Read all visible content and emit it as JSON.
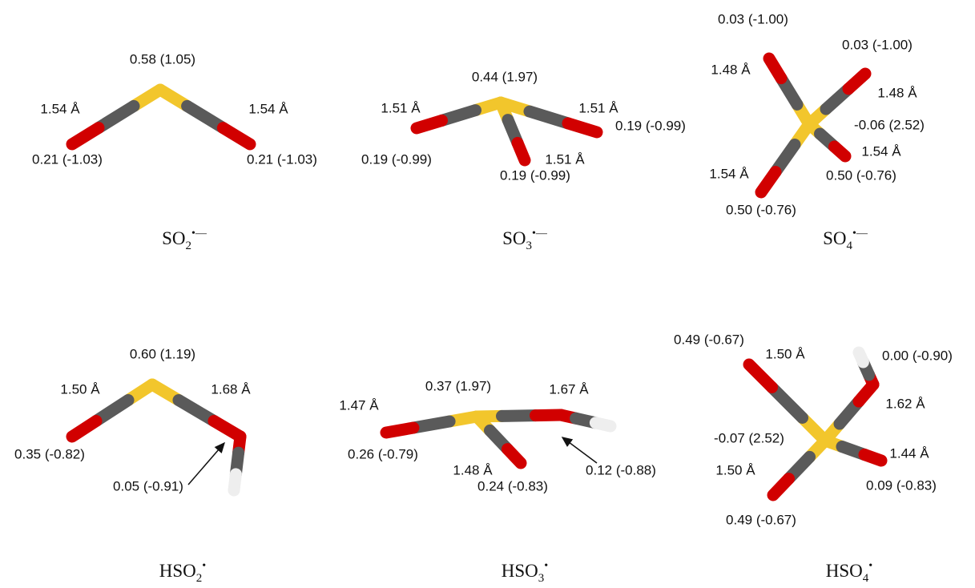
{
  "molecules": [
    {
      "formula": {
        "base": "SO",
        "sub": "2",
        "sup": "•—"
      },
      "labels": [
        "0.58 (1.05)",
        "1.54 Å",
        "1.54 Å",
        "0.21 (-1.03)",
        "0.21 (-1.03)"
      ]
    },
    {
      "formula": {
        "base": "SO",
        "sub": "3",
        "sup": "•—"
      },
      "labels": [
        "0.44 (1.97)",
        "1.51 Å",
        "1.51 Å",
        "0.19 (-0.99)",
        "0.19 (-0.99)",
        "1.51 Å",
        "0.19 (-0.99)"
      ]
    },
    {
      "formula": {
        "base": "SO",
        "sub": "4",
        "sup": "•—"
      },
      "labels": [
        "0.03 (-1.00)",
        "0.03 (-1.00)",
        "1.48 Å",
        "1.48 Å",
        "-0.06 (2.52)",
        "1.54 Å",
        "1.54 Å",
        "0.50 (-0.76)",
        "0.50 (-0.76)"
      ]
    },
    {
      "formula": {
        "base": "HSO",
        "sub": "2",
        "sup": "•"
      },
      "labels": [
        "0.60 (1.19)",
        "1.50 Å",
        "1.68 Å",
        "0.35 (-0.82)",
        "0.05 (-0.91)"
      ]
    },
    {
      "formula": {
        "base": "HSO",
        "sub": "3",
        "sup": "•"
      },
      "labels": [
        "0.37 (1.97)",
        "1.47 Å",
        "1.67 Å",
        "0.26 (-0.79)",
        "1.48 Å",
        "0.24 (-0.83)",
        "0.12 (-0.88)"
      ]
    },
    {
      "formula": {
        "base": "HSO",
        "sub": "4",
        "sup": "•"
      },
      "labels": [
        "0.49 (-0.67)",
        "1.50 Å",
        "0.00 (-0.90)",
        "1.62 Å",
        "-0.07 (2.52)",
        "1.44 Å",
        "1.50 Å",
        "0.09 (-0.83)",
        "0.49 (-0.67)"
      ]
    }
  ]
}
